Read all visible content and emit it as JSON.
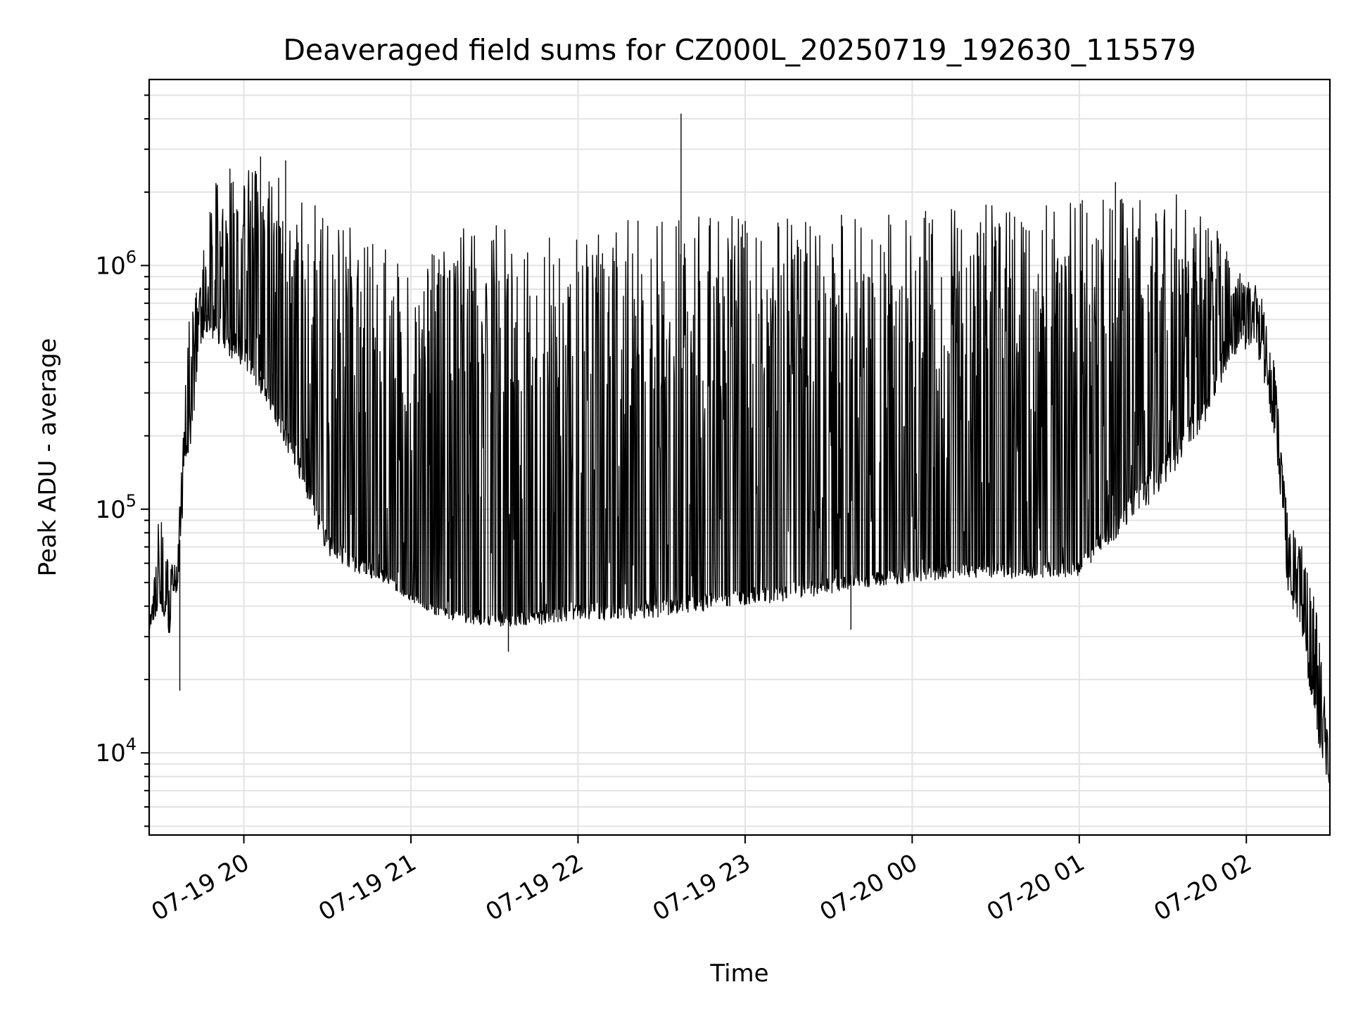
{
  "chart_data": {
    "type": "line",
    "title": "Deaveraged field sums for CZ000L_20250719_192630_115579",
    "xlabel": "Time",
    "ylabel": "Peak ADU - average",
    "y_scale": "log",
    "grid": true,
    "legend": "none",
    "colors": {
      "line": "#000000",
      "grid": "#e3e3e3",
      "background": "#ffffff"
    },
    "xlim": [
      "2025-07-19 19:26",
      "2025-07-20 02:30"
    ],
    "ylim": [
      4600,
      5800000
    ],
    "x_ticks": [
      {
        "value": "2025-07-19 20:00",
        "label": "07-19 20"
      },
      {
        "value": "2025-07-19 21:00",
        "label": "07-19 21"
      },
      {
        "value": "2025-07-19 22:00",
        "label": "07-19 22"
      },
      {
        "value": "2025-07-19 23:00",
        "label": "07-19 23"
      },
      {
        "value": "2025-07-20 00:00",
        "label": "07-20 00"
      },
      {
        "value": "2025-07-20 01:00",
        "label": "07-20 01"
      },
      {
        "value": "2025-07-20 02:00",
        "label": "07-20 02"
      }
    ],
    "y_ticks": [
      {
        "value": 10000,
        "base": "10",
        "exp": "4"
      },
      {
        "value": 100000,
        "base": "10",
        "exp": "5"
      },
      {
        "value": 1000000,
        "base": "10",
        "exp": "6"
      }
    ],
    "series": [
      {
        "envelope": {
          "x": [
            "2025-07-19 19:26",
            "2025-07-19 19:30",
            "2025-07-19 19:33",
            "2025-07-19 19:36",
            "2025-07-19 19:40",
            "2025-07-19 19:45",
            "2025-07-19 19:50",
            "2025-07-19 19:55",
            "2025-07-19 20:00",
            "2025-07-19 20:10",
            "2025-07-19 20:20",
            "2025-07-19 20:30",
            "2025-07-19 20:40",
            "2025-07-19 20:50",
            "2025-07-19 21:00",
            "2025-07-19 21:10",
            "2025-07-19 21:20",
            "2025-07-19 21:30",
            "2025-07-19 21:40",
            "2025-07-19 21:50",
            "2025-07-19 22:00",
            "2025-07-19 22:15",
            "2025-07-19 22:30",
            "2025-07-19 22:45",
            "2025-07-19 23:00",
            "2025-07-19 23:15",
            "2025-07-19 23:30",
            "2025-07-19 23:45",
            "2025-07-20 00:00",
            "2025-07-20 00:15",
            "2025-07-20 00:30",
            "2025-07-20 00:45",
            "2025-07-20 01:00",
            "2025-07-20 01:15",
            "2025-07-20 01:30",
            "2025-07-20 01:45",
            "2025-07-20 01:55",
            "2025-07-20 02:05",
            "2025-07-20 02:10",
            "2025-07-20 02:15",
            "2025-07-20 02:20",
            "2025-07-20 02:25",
            "2025-07-20 02:30"
          ],
          "low": [
            32000,
            40000,
            28000,
            45000,
            150000,
            500000,
            480000,
            420000,
            380000,
            250000,
            130000,
            65000,
            55000,
            50000,
            42000,
            36000,
            34000,
            33000,
            33000,
            34000,
            35000,
            35000,
            36000,
            38000,
            40000,
            42000,
            45000,
            48000,
            50000,
            52000,
            52000,
            52000,
            53000,
            80000,
            120000,
            220000,
            420000,
            400000,
            200000,
            45000,
            30000,
            12000,
            7000
          ],
          "base": [
            32000,
            45000,
            40000,
            50000,
            250000,
            700000,
            650000,
            550000,
            500000,
            300000,
            170000,
            80000,
            65000,
            58000,
            45000,
            40000,
            38000,
            37000,
            38000,
            40000,
            42000,
            42000,
            43000,
            45000,
            48000,
            50000,
            52000,
            55000,
            58000,
            60000,
            60000,
            60000,
            62000,
            100000,
            170000,
            300000,
            550000,
            550000,
            300000,
            55000,
            40000,
            15000,
            8000
          ],
          "high": [
            32000,
            110000,
            60000,
            60000,
            600000,
            1100000,
            2300000,
            2200000,
            2500000,
            2400000,
            2000000,
            1600000,
            1400000,
            1200000,
            900000,
            1300000,
            1500000,
            1500000,
            1500000,
            1550000,
            1550000,
            1550000,
            1550000,
            1600000,
            1600000,
            1600000,
            1650000,
            1650000,
            1700000,
            1750000,
            1800000,
            1800000,
            1850000,
            2000000,
            2050000,
            1900000,
            1000000,
            800000,
            400000,
            90000,
            70000,
            40000,
            10000
          ]
        },
        "spikes": [
          {
            "x": "2025-07-19 22:37",
            "y": 4200000
          },
          {
            "x": "2025-07-19 20:06",
            "y": 2800000
          },
          {
            "x": "2025-07-19 20:15",
            "y": 2700000
          },
          {
            "x": "2025-07-20 01:13",
            "y": 2200000
          },
          {
            "x": "2025-07-19 19:55",
            "y": 2500000
          },
          {
            "x": "2025-07-19 19:37",
            "y": 18000
          },
          {
            "x": "2025-07-19 21:35",
            "y": 26000
          },
          {
            "x": "2025-07-19 23:38",
            "y": 32000
          }
        ]
      }
    ]
  }
}
